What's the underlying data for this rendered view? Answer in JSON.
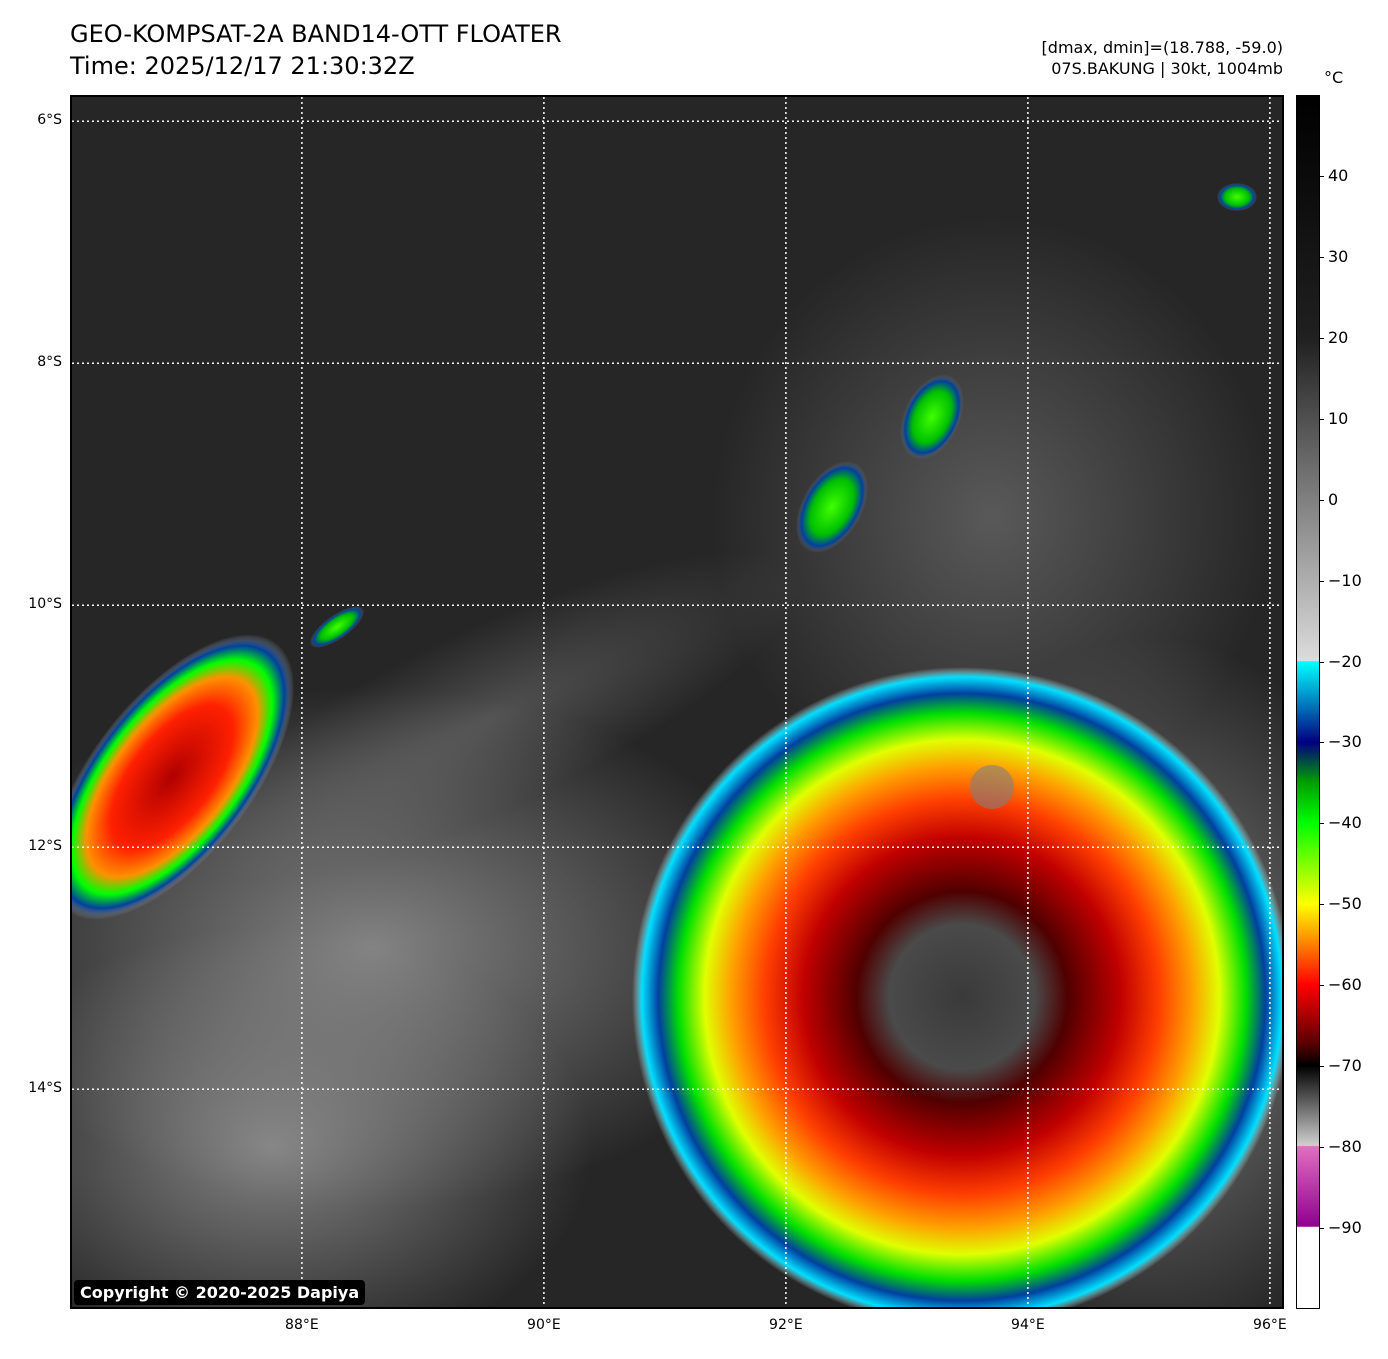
{
  "header": {
    "title_line1": "GEO-KOMPSAT-2A BAND14-OTT FLOATER",
    "title_line2": "Time: 2025/12/17 21:30:32Z",
    "info_line1": "[dmax, dmin]=(18.788, -59.0)",
    "info_line2": "07S.BAKUNG | 30kt, 1004mb"
  },
  "map": {
    "copyright": "Copyright © 2020-2025 Dapiya",
    "lat_labels": [
      "6°S",
      "8°S",
      "10°S",
      "12°S",
      "14°S"
    ],
    "lon_labels": [
      "88°E",
      "90°E",
      "92°E",
      "94°E",
      "96°E"
    ],
    "extent": {
      "lon_min": 86.1,
      "lon_max": 96.1,
      "lat_min": -15.8,
      "lat_max": -5.8
    },
    "grid_lats": [
      -6,
      -8,
      -10,
      -12,
      -14
    ],
    "grid_lons": [
      88,
      90,
      92,
      94,
      96
    ],
    "background_color": "#2a2a2a"
  },
  "colorbar": {
    "unit": "°C",
    "ticks": [
      "40",
      "30",
      "20",
      "10",
      "0",
      "−10",
      "−20",
      "−30",
      "−40",
      "−50",
      "−60",
      "−70",
      "−80",
      "−90"
    ],
    "tick_values": [
      40,
      30,
      20,
      10,
      0,
      -10,
      -20,
      -30,
      -40,
      -50,
      -60,
      -70,
      -80,
      -90
    ],
    "range": [
      -100,
      50
    ],
    "stops": [
      {
        "value": 50,
        "color": "#000000"
      },
      {
        "value": 20,
        "color": "#202020"
      },
      {
        "value": 0,
        "color": "#808080"
      },
      {
        "value": -19.9,
        "color": "#dcdcdc"
      },
      {
        "value": -20,
        "color": "#00ffff"
      },
      {
        "value": -25,
        "color": "#0080c0"
      },
      {
        "value": -30,
        "color": "#000080"
      },
      {
        "value": -35,
        "color": "#00a000"
      },
      {
        "value": -40,
        "color": "#00ff00"
      },
      {
        "value": -50,
        "color": "#ffff00"
      },
      {
        "value": -55,
        "color": "#ff8000"
      },
      {
        "value": -60,
        "color": "#ff0000"
      },
      {
        "value": -67,
        "color": "#600000"
      },
      {
        "value": -70,
        "color": "#000000"
      },
      {
        "value": -79.9,
        "color": "#d0d0d0"
      },
      {
        "value": -80,
        "color": "#e070c0"
      },
      {
        "value": -89.9,
        "color": "#900090"
      },
      {
        "value": -90,
        "color": "#ffffff"
      },
      {
        "value": -100,
        "color": "#ffffff"
      }
    ]
  }
}
